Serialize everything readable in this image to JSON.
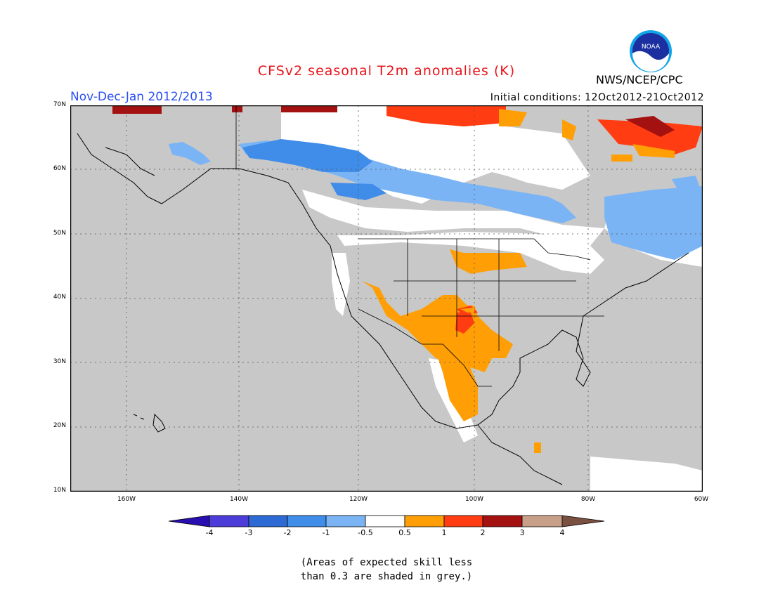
{
  "header": {
    "title": "CFSv2 seasonal T2m anomalies (K)",
    "period": "Nov-Dec-Jan 2012/2013",
    "initial_conditions": "Initial conditions: 12Oct2012-21Oct2012",
    "agency": "NWS/NCEP/CPC",
    "logo_text": "NOAA"
  },
  "map": {
    "lon_range": [
      -172,
      -60
    ],
    "lat_range": [
      10,
      70
    ],
    "lat_labels": [
      "70N",
      "60N",
      "50N",
      "40N",
      "30N",
      "20N",
      "10N"
    ],
    "lon_labels": [
      "160W",
      "140W",
      "120W",
      "100W",
      "80W",
      "60W"
    ],
    "colors": {
      "grey_low_skill": "#c8c8c8",
      "neutral": "#ffffff",
      "pos_0_5_1": "#ff9f05",
      "pos_1_2": "#ff3c12",
      "pos_2_3": "#a31111",
      "neg_0_5_1": "#7ab4f5",
      "neg_1_2": "#3f8de8"
    }
  },
  "colorbar": {
    "labels": [
      "-4",
      "-3",
      "-2",
      "-1",
      "-0.5",
      "0.5",
      "1",
      "2",
      "3",
      "4"
    ],
    "colors": [
      "#2a0fb0",
      "#4c3dd8",
      "#2d6ad4",
      "#3f8de8",
      "#7ab4f5",
      "#ffffff",
      "#ff9f05",
      "#ff3c12",
      "#a31111",
      "#c8a08a",
      "#7a5040"
    ]
  },
  "note": {
    "line1": "(Areas of expected skill less",
    "line2": "than 0.3 are shaded in grey.)"
  }
}
